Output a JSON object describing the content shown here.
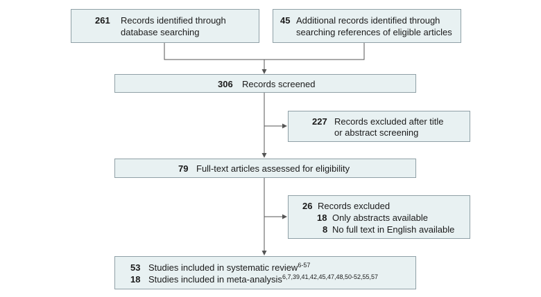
{
  "box_identified_db": {
    "count": "261",
    "line1": "Records identified through",
    "line2": "database searching"
  },
  "box_identified_refs": {
    "count": "45",
    "line1": "Additional records identified through",
    "line2": "searching references of eligible articles"
  },
  "box_screened": {
    "count": "306",
    "label": "Records screened"
  },
  "box_excluded_title": {
    "count": "227",
    "line1": "Records excluded after title",
    "line2": "or abstract screening"
  },
  "box_fulltext": {
    "count": "79",
    "label": "Full-text articles assessed for eligibility"
  },
  "box_excluded": {
    "count": "26",
    "label": "Records excluded",
    "reasons": [
      {
        "count": "18",
        "label": "Only abstracts available"
      },
      {
        "count": "8",
        "label": "No full text in English available"
      }
    ]
  },
  "box_included": {
    "systematic": {
      "count": "53",
      "label": "Studies included in systematic review",
      "refs": "6-57"
    },
    "meta": {
      "count": "18",
      "label": "Studies included in meta-analysis",
      "refs": "6,7,39,41,42,45,47,48,50-52,55,57"
    }
  }
}
